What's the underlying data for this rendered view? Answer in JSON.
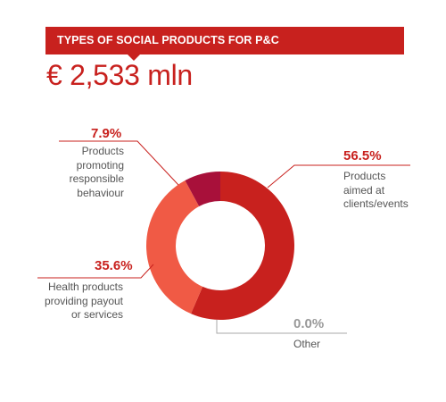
{
  "header": {
    "title": "TYPES OF SOCIAL PRODUCTS FOR P&C",
    "total": "€ 2,533 mln"
  },
  "colors": {
    "title_bg": "#c8211e",
    "total_text": "#c8211e",
    "leader": "#c8211e",
    "leader_other": "#aaaaaa"
  },
  "chart_data": {
    "type": "pie",
    "donut": true,
    "title": "TYPES OF SOCIAL PRODUCTS FOR P&C",
    "total": "€ 2,533 mln",
    "series": [
      {
        "name": "Products aimed at clients/events",
        "label": "56.5%",
        "value": 56.5,
        "color": "#c8211e",
        "text_color": "#c8211e"
      },
      {
        "name": "Other",
        "label": "0.0%",
        "value": 0.0,
        "color": "#e0e0e0",
        "text_color": "#999999"
      },
      {
        "name": "Health products providing payout or services",
        "label": "35.6%",
        "value": 35.6,
        "color": "#f05a45",
        "text_color": "#c8211e"
      },
      {
        "name": "Products promoting responsible behaviour",
        "label": "7.9%",
        "value": 7.9,
        "color": "#a8103a",
        "text_color": "#c8211e"
      }
    ]
  }
}
